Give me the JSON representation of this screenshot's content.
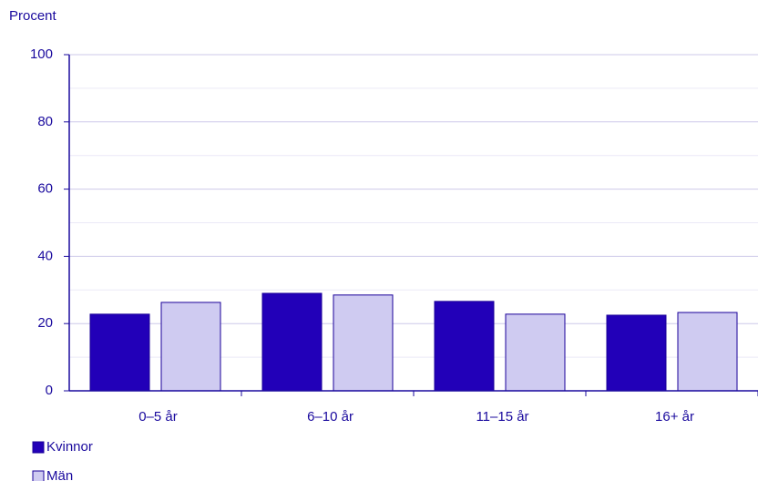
{
  "chart_data": {
    "type": "bar",
    "y_label": "Procent",
    "categories": [
      "0–5 år",
      "6–10 år",
      "11–15 år",
      "16+ år"
    ],
    "series": [
      {
        "name": "Kvinnor",
        "color": "#2200b8",
        "values": [
          22.8,
          29.0,
          26.6,
          22.5
        ]
      },
      {
        "name": "Män",
        "color": "#cfcbf1",
        "values": [
          26.3,
          28.5,
          22.8,
          23.3
        ]
      }
    ],
    "ylim": [
      0,
      100
    ],
    "yticks": [
      0,
      20,
      40,
      60,
      80,
      100
    ],
    "minor_yticks": [
      10,
      30,
      50,
      70,
      90
    ],
    "grid": true
  }
}
